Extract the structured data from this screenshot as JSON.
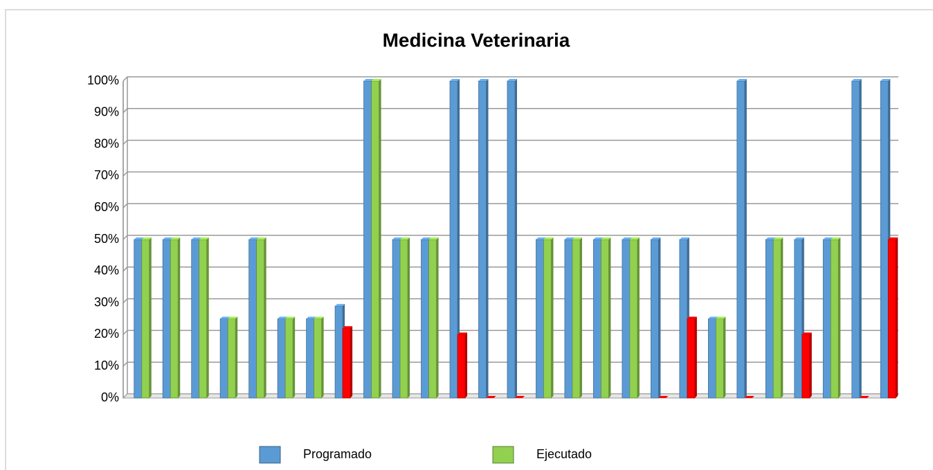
{
  "chart_data": {
    "type": "bar3d",
    "title": "Medicina Veterinaria",
    "categories": [
      null,
      null,
      null,
      null,
      null,
      null,
      null,
      null,
      null,
      null,
      null,
      null,
      null,
      null,
      null,
      null,
      null,
      null,
      null,
      null,
      null,
      null,
      null,
      null,
      null,
      null,
      null
    ],
    "series": [
      {
        "name": "Programado",
        "color": "#5b9bd5",
        "values": [
          50,
          50,
          50,
          25,
          50,
          25,
          25,
          29,
          100,
          50,
          50,
          100,
          100,
          100,
          50,
          50,
          50,
          50,
          50,
          50,
          25,
          100,
          50,
          50,
          50,
          100,
          100
        ]
      },
      {
        "name": "Ejecutado",
        "color": "#92d050",
        "colors": [
          "#92d050",
          "#92d050",
          "#92d050",
          "#92d050",
          "#92d050",
          "#92d050",
          "#92d050",
          "#ff0000",
          "#92d050",
          "#92d050",
          "#92d050",
          "#ff0000",
          "#ff0000",
          "#ff0000",
          "#92d050",
          "#92d050",
          "#92d050",
          "#92d050",
          "#ff0000",
          "#ff0000",
          "#92d050",
          "#ff0000",
          "#92d050",
          "#ff0000",
          "#92d050",
          "#ff0000",
          "#ff0000"
        ],
        "values": [
          50,
          50,
          50,
          25,
          50,
          25,
          25,
          22,
          100,
          50,
          50,
          20,
          0,
          0,
          50,
          50,
          50,
          50,
          0,
          25,
          25,
          0,
          50,
          20,
          50,
          0,
          50
        ]
      }
    ],
    "ylim": [
      0,
      100
    ],
    "yticks": [
      {
        "value": 0,
        "label": "0%"
      },
      {
        "value": 10,
        "label": "10%"
      },
      {
        "value": 20,
        "label": "20%"
      },
      {
        "value": 30,
        "label": "30%"
      },
      {
        "value": 40,
        "label": "40%"
      },
      {
        "value": 50,
        "label": "50%"
      },
      {
        "value": 60,
        "label": "60%"
      },
      {
        "value": 70,
        "label": "70%"
      },
      {
        "value": 80,
        "label": "80%"
      },
      {
        "value": 90,
        "label": "90%"
      },
      {
        "value": 100,
        "label": "100%"
      }
    ],
    "grid": true,
    "legend": "bottom"
  }
}
